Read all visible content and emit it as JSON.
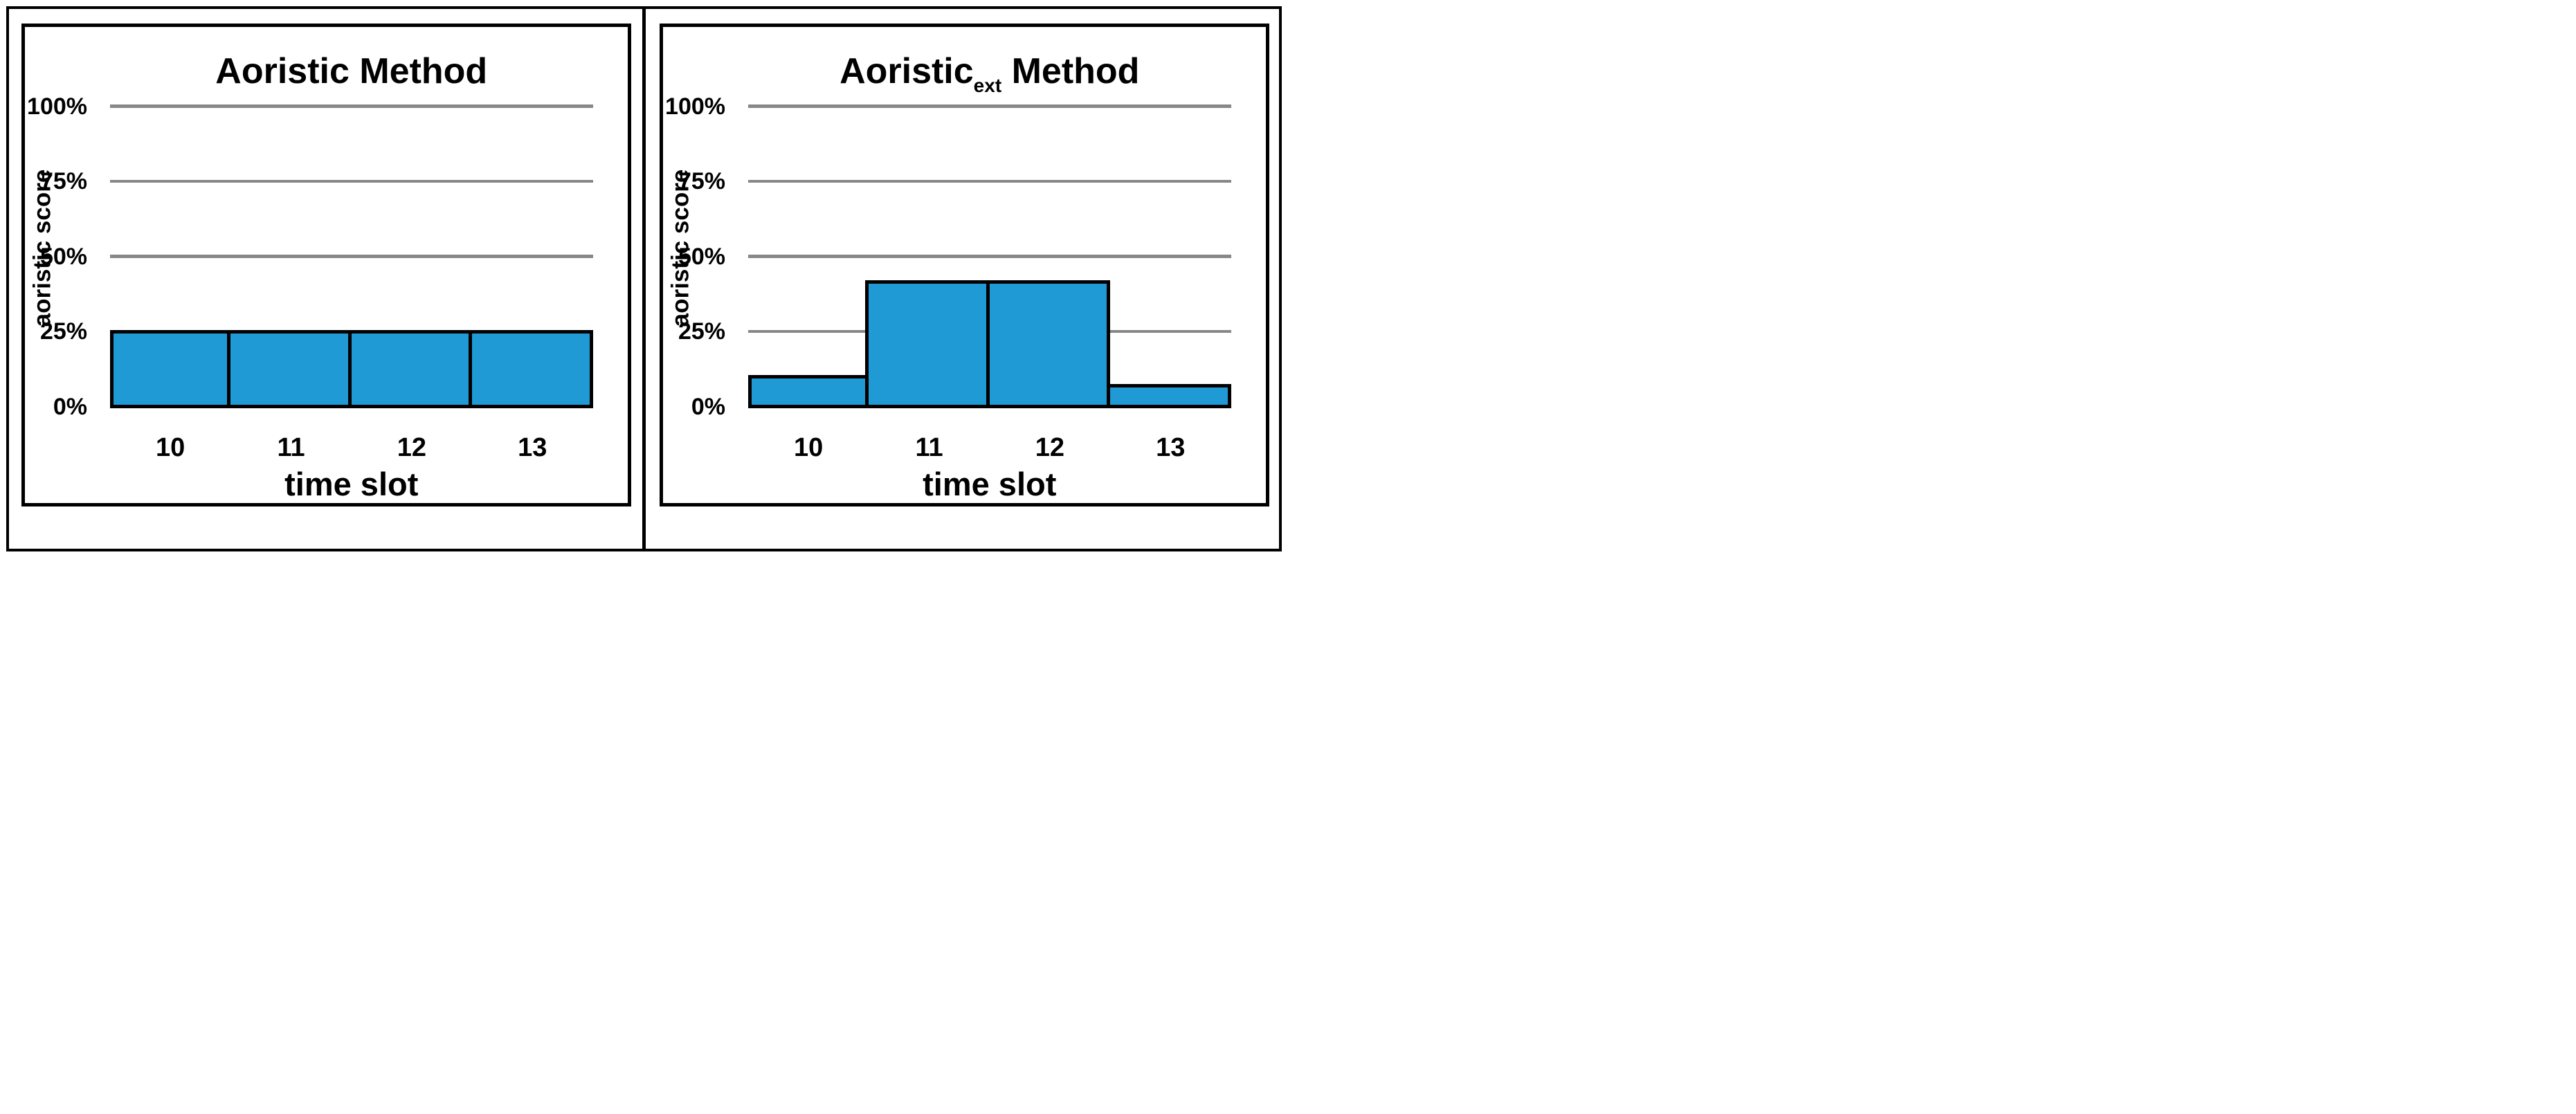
{
  "colors": {
    "bar_fill": "#1F9AD5",
    "bar_border": "#000000",
    "gridline": "#878787",
    "frame": "#000000"
  },
  "chart_data": [
    {
      "type": "bar",
      "title": "Aoristic Method",
      "title_parts": {
        "base": "Aoristic",
        "sub": "",
        "rest": " Method"
      },
      "xlabel": "time slot",
      "ylabel": "aoristic score",
      "categories": [
        "10",
        "11",
        "12",
        "13"
      ],
      "values": [
        25,
        25,
        25,
        25
      ],
      "yticks": [
        {
          "label": "100%",
          "value": 100
        },
        {
          "label": "75%",
          "value": 75
        },
        {
          "label": "50%",
          "value": 50
        },
        {
          "label": "25%",
          "value": 25
        },
        {
          "label": "0%",
          "value": 0
        }
      ],
      "ylim": [
        0,
        100
      ],
      "grid": true,
      "legend": "none"
    },
    {
      "type": "bar",
      "title": "Aoristic_ext Method",
      "title_parts": {
        "base": "Aoristic",
        "sub": "ext",
        "rest": " Method"
      },
      "xlabel": "time slot",
      "ylabel": "aoristic score",
      "categories": [
        "10",
        "11",
        "12",
        "13"
      ],
      "values": [
        10,
        41.5,
        41.5,
        7
      ],
      "yticks": [
        {
          "label": "100%",
          "value": 100
        },
        {
          "label": "75%",
          "value": 75
        },
        {
          "label": "50%",
          "value": 50
        },
        {
          "label": "25%",
          "value": 25
        },
        {
          "label": "0%",
          "value": 0
        }
      ],
      "ylim": [
        0,
        100
      ],
      "grid": true,
      "legend": "none"
    }
  ]
}
